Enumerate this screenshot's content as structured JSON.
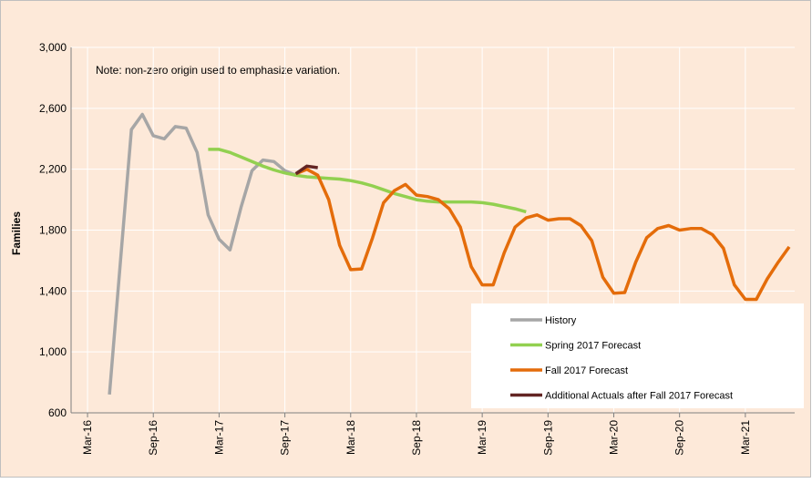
{
  "chart_data": {
    "type": "line",
    "y_label": "Families",
    "annotation": "Note: non-zero origin used to emphasize variation.",
    "categories": [
      null,
      "Mar-16",
      null,
      null,
      null,
      null,
      null,
      "Sep-16",
      null,
      null,
      null,
      null,
      null,
      "Mar-17",
      null,
      null,
      null,
      null,
      null,
      "Sep-17",
      null,
      null,
      null,
      null,
      null,
      "Mar-18",
      null,
      null,
      null,
      null,
      null,
      "Sep-18",
      null,
      null,
      null,
      null,
      null,
      "Mar-19",
      null,
      null,
      null,
      null,
      null,
      "Sep-19",
      null,
      null,
      null,
      null,
      null,
      "Mar-20",
      null,
      null,
      null,
      null,
      null,
      "Sep-20",
      null,
      null,
      null,
      null,
      null,
      "Mar-21",
      null,
      null,
      null,
      null
    ],
    "series": [
      {
        "name": "History",
        "color": "#a6a6a6",
        "values": [
          null,
          null,
          null,
          720,
          1590,
          2460,
          2560,
          2420,
          2400,
          2480,
          2470,
          2310,
          1900,
          1740,
          1670,
          1950,
          2190,
          2260,
          2250,
          2190,
          2160,
          null,
          null,
          null,
          null,
          null,
          null,
          null,
          null,
          null,
          null,
          null,
          null,
          null,
          null,
          null,
          null,
          null,
          null,
          null,
          null,
          null,
          null,
          null,
          null,
          null,
          null,
          null,
          null,
          null,
          null,
          null,
          null,
          null,
          null,
          null,
          null,
          null,
          null,
          null,
          null,
          null,
          null,
          null,
          null,
          null
        ]
      },
      {
        "name": "Spring 2017 Forecast",
        "color": "#92d050",
        "values": [
          null,
          null,
          null,
          null,
          null,
          null,
          null,
          null,
          null,
          null,
          null,
          null,
          2330,
          2330,
          2310,
          2280,
          2250,
          2220,
          2195,
          2175,
          2160,
          2150,
          2145,
          2140,
          2135,
          2125,
          2110,
          2090,
          2065,
          2040,
          2020,
          2000,
          1990,
          1985,
          1985,
          1985,
          1985,
          1980,
          1970,
          1955,
          1940,
          1920,
          null,
          null,
          null,
          null,
          null,
          null,
          null,
          null,
          null,
          null,
          null,
          null,
          null,
          null,
          null,
          null,
          null,
          null,
          null,
          null,
          null,
          null,
          null,
          null
        ]
      },
      {
        "name": "Fall 2017 Forecast",
        "color": "#e46c0a",
        "values": [
          null,
          null,
          null,
          null,
          null,
          null,
          null,
          null,
          null,
          null,
          null,
          null,
          null,
          null,
          null,
          null,
          null,
          null,
          null,
          null,
          2170,
          2200,
          2160,
          2000,
          1700,
          1540,
          1545,
          1750,
          1980,
          2060,
          2100,
          2030,
          2020,
          2000,
          1940,
          1820,
          1560,
          1440,
          1440,
          1650,
          1820,
          1880,
          1900,
          1865,
          1875,
          1875,
          1830,
          1730,
          1490,
          1385,
          1390,
          1590,
          1750,
          1810,
          1830,
          1800,
          1810,
          1810,
          1770,
          1680,
          1440,
          1345,
          1345,
          1480,
          1590,
          1690
        ]
      },
      {
        "name": "Additional Actuals after Fall 2017 Forecast",
        "color": "#632523",
        "values": [
          null,
          null,
          null,
          null,
          null,
          null,
          null,
          null,
          null,
          null,
          null,
          null,
          null,
          null,
          null,
          null,
          null,
          null,
          null,
          null,
          2170,
          2220,
          2210,
          null,
          null,
          null,
          null,
          null,
          null,
          null,
          null,
          null,
          null,
          null,
          null,
          null,
          null,
          null,
          null,
          null,
          null,
          null,
          null,
          null,
          null,
          null,
          null,
          null,
          null,
          null,
          null,
          null,
          null,
          null,
          null,
          null,
          null,
          null,
          null,
          null,
          null,
          null,
          null,
          null,
          null,
          null
        ]
      }
    ],
    "ylim": [
      600,
      3000
    ],
    "yticks": [
      600,
      {
        "value": 1000,
        "label": "1,000"
      },
      {
        "value": 1400,
        "label": "1,400"
      },
      {
        "value": 1800,
        "label": "1,800"
      },
      {
        "value": 2200,
        "label": "2,200"
      },
      {
        "value": 2600,
        "label": "2,600"
      },
      {
        "value": 3000,
        "label": "3,000"
      }
    ],
    "grid": true,
    "legend": "lower right"
  }
}
